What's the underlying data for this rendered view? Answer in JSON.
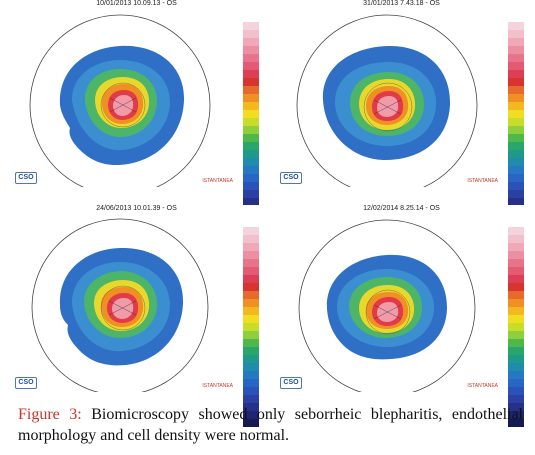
{
  "figure": {
    "panels": [
      {
        "title": "10/01/2013 10.09.13 - OS",
        "logo": "CSO",
        "mode_label": "ISTANTANEA"
      },
      {
        "title": "31/01/2013 7.43.18 - OS",
        "logo": "CSO",
        "mode_label": "ISTANTANEA"
      },
      {
        "title": "24/06/2013 10.01.39 - OS",
        "logo": "CSO",
        "mode_label": "ISTANTANEA"
      },
      {
        "title": "12/02/2014 8.25.14 - OS",
        "logo": "CSO",
        "mode_label": "ISTANTANEA"
      }
    ],
    "scale_colors": [
      "#f4d4dc",
      "#f2c0cc",
      "#f0a8b8",
      "#ec8fa2",
      "#e8748b",
      "#e35a72",
      "#dc3f55",
      "#d8342f",
      "#e56a2b",
      "#f08f24",
      "#f4b81f",
      "#f1dd22",
      "#c8dd2a",
      "#8fce3c",
      "#4fb84b",
      "#2aa66b",
      "#1e9a8a",
      "#1f8cae",
      "#2479c2",
      "#2866c5",
      "#2a52b8",
      "#2a40a3",
      "#253089",
      "#1e246e",
      "#161a52"
    ],
    "caption_label": "Figure 3:",
    "caption_text": " Biomicroscopy showed only seborrheic blepharitis, endothelial morphology and cell density were normal."
  }
}
